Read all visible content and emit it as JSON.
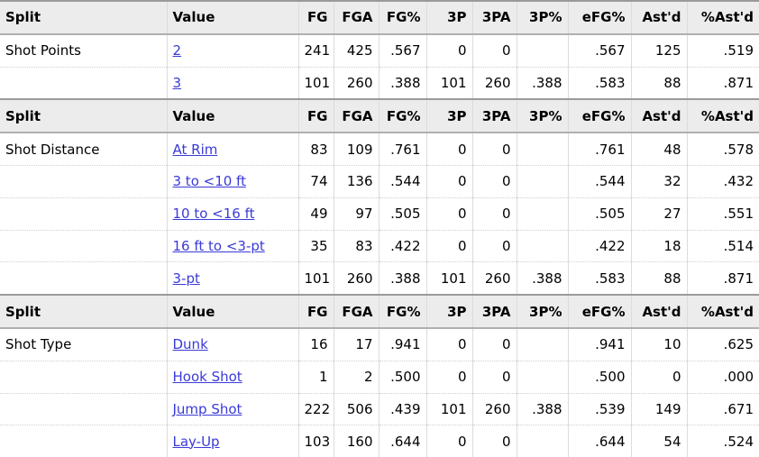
{
  "columns": [
    "Split",
    "Value",
    "FG",
    "FGA",
    "FG%",
    "3P",
    "3PA",
    "3P%",
    "eFG%",
    "Ast'd",
    "%Ast'd"
  ],
  "link_color": "#3a3ad8",
  "sections": [
    {
      "split": "Shot Points",
      "rows": [
        {
          "value": "2",
          "stats": [
            "241",
            "425",
            ".567",
            "0",
            "0",
            "",
            ".567",
            "125",
            ".519"
          ]
        },
        {
          "value": "3",
          "stats": [
            "101",
            "260",
            ".388",
            "101",
            "260",
            ".388",
            ".583",
            "88",
            ".871"
          ]
        }
      ]
    },
    {
      "split": "Shot Distance",
      "rows": [
        {
          "value": "At Rim",
          "stats": [
            "83",
            "109",
            ".761",
            "0",
            "0",
            "",
            ".761",
            "48",
            ".578"
          ]
        },
        {
          "value": "3 to <10 ft",
          "stats": [
            "74",
            "136",
            ".544",
            "0",
            "0",
            "",
            ".544",
            "32",
            ".432"
          ]
        },
        {
          "value": "10 to <16 ft",
          "stats": [
            "49",
            "97",
            ".505",
            "0",
            "0",
            "",
            ".505",
            "27",
            ".551"
          ]
        },
        {
          "value": "16 ft to <3-pt",
          "stats": [
            "35",
            "83",
            ".422",
            "0",
            "0",
            "",
            ".422",
            "18",
            ".514"
          ]
        },
        {
          "value": "3-pt",
          "stats": [
            "101",
            "260",
            ".388",
            "101",
            "260",
            ".388",
            ".583",
            "88",
            ".871"
          ]
        }
      ]
    },
    {
      "split": "Shot Type",
      "rows": [
        {
          "value": "Dunk",
          "stats": [
            "16",
            "17",
            ".941",
            "0",
            "0",
            "",
            ".941",
            "10",
            ".625"
          ]
        },
        {
          "value": "Hook Shot",
          "stats": [
            "1",
            "2",
            ".500",
            "0",
            "0",
            "",
            ".500",
            "0",
            ".000"
          ]
        },
        {
          "value": "Jump Shot",
          "stats": [
            "222",
            "506",
            ".439",
            "101",
            "260",
            ".388",
            ".539",
            "149",
            ".671"
          ]
        },
        {
          "value": "Lay-Up",
          "stats": [
            "103",
            "160",
            ".644",
            "0",
            "0",
            "",
            ".644",
            "54",
            ".524"
          ]
        }
      ]
    }
  ]
}
